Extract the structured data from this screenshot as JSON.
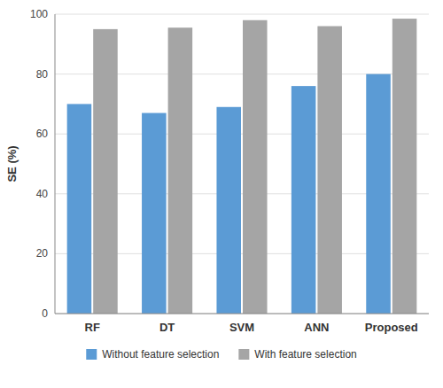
{
  "chart_data": {
    "type": "bar",
    "categories": [
      "RF",
      "DT",
      "SVM",
      "ANN",
      "Proposed"
    ],
    "series": [
      {
        "name": "Without feature selection",
        "color": "#5b9bd5",
        "values": [
          70,
          67,
          69,
          76,
          80
        ]
      },
      {
        "name": "With feature selection",
        "color": "#a5a5a5",
        "values": [
          95,
          95.5,
          98,
          96,
          98.5
        ]
      }
    ],
    "ylabel": "SE (%)",
    "ylim": [
      0,
      100
    ],
    "yticks": [
      0,
      20,
      40,
      60,
      80,
      100
    ],
    "grid": true,
    "legend": "bottom"
  }
}
